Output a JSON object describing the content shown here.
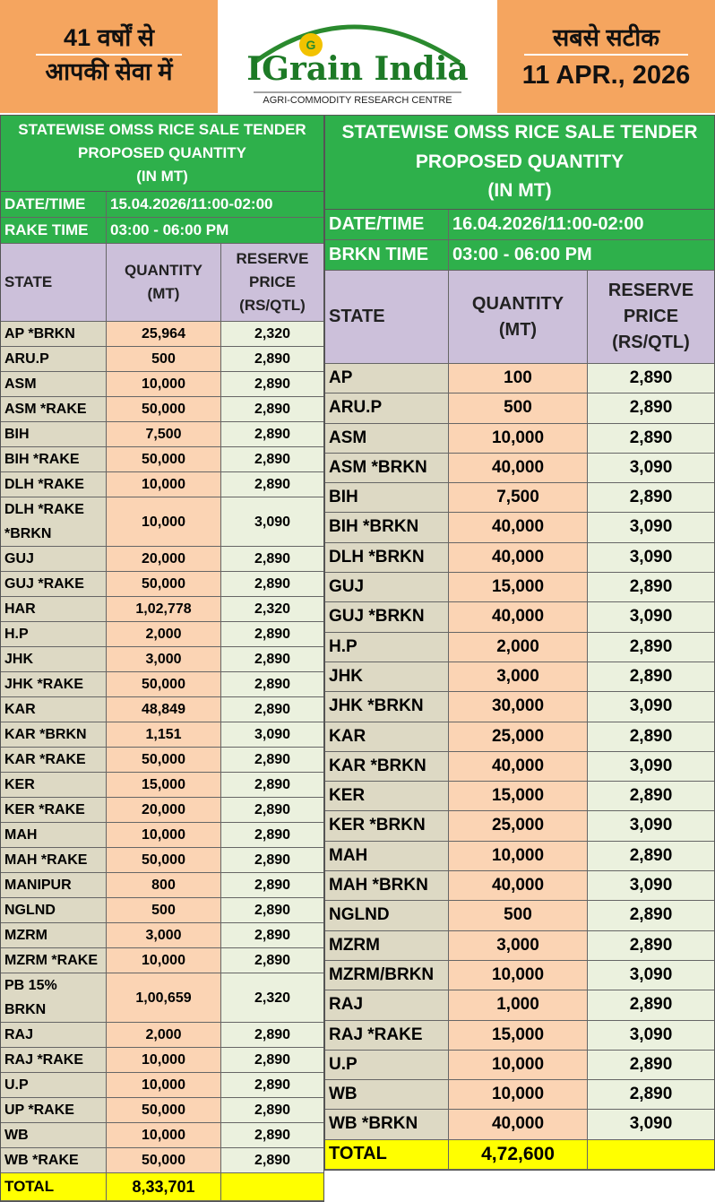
{
  "header": {
    "left": [
      "41 वर्षों से",
      "आपकी सेवा में"
    ],
    "logo": "IGrain India",
    "logo_subtitle": "AGRI-COMMODITY RESEARCH CENTRE",
    "right": [
      "सबसे सटीक",
      "11 APR., 2026"
    ]
  },
  "tables": [
    {
      "title": [
        "STATEWISE OMSS RICE SALE TENDER",
        "PROPOSED QUANTITY",
        "(IN MT)"
      ],
      "info": [
        [
          "DATE/TIME",
          "15.04.2026/11:00-02:00"
        ],
        [
          "RAKE TIME",
          "03:00 - 06:00 PM"
        ]
      ],
      "columns": [
        "STATE",
        "QUANTITY\n(MT)",
        "RESERVE\nPRICE\n(RS/QTL)"
      ],
      "rows": [
        [
          "AP *BRKN",
          "25,964",
          "2,320"
        ],
        [
          "ARU.P",
          "500",
          "2,890"
        ],
        [
          "ASM",
          "10,000",
          "2,890"
        ],
        [
          "ASM *RAKE",
          "50,000",
          "2,890"
        ],
        [
          "BIH",
          "7,500",
          "2,890"
        ],
        [
          "BIH *RAKE",
          "50,000",
          "2,890"
        ],
        [
          "DLH *RAKE",
          "10,000",
          "2,890"
        ],
        [
          "DLH *RAKE *BRKN",
          "10,000",
          "3,090"
        ],
        [
          "GUJ",
          "20,000",
          "2,890"
        ],
        [
          "GUJ *RAKE",
          "50,000",
          "2,890"
        ],
        [
          "HAR",
          "1,02,778",
          "2,320"
        ],
        [
          "H.P",
          "2,000",
          "2,890"
        ],
        [
          "JHK",
          "3,000",
          "2,890"
        ],
        [
          "JHK *RAKE",
          "50,000",
          "2,890"
        ],
        [
          "KAR",
          "48,849",
          "2,890"
        ],
        [
          "KAR *BRKN",
          "1,151",
          "3,090"
        ],
        [
          "KAR *RAKE",
          "50,000",
          "2,890"
        ],
        [
          "KER",
          "15,000",
          "2,890"
        ],
        [
          "KER *RAKE",
          "20,000",
          "2,890"
        ],
        [
          "MAH",
          "10,000",
          "2,890"
        ],
        [
          "MAH *RAKE",
          "50,000",
          "2,890"
        ],
        [
          "MANIPUR",
          "800",
          "2,890"
        ],
        [
          "NGLND",
          "500",
          "2,890"
        ],
        [
          "MZRM",
          "3,000",
          "2,890"
        ],
        [
          "MZRM *RAKE",
          "10,000",
          "2,890"
        ],
        [
          "PB 15% BRKN",
          "1,00,659",
          "2,320"
        ],
        [
          "RAJ",
          "2,000",
          "2,890"
        ],
        [
          "RAJ *RAKE",
          "10,000",
          "2,890"
        ],
        [
          "U.P",
          "10,000",
          "2,890"
        ],
        [
          "UP *RAKE",
          "50,000",
          "2,890"
        ],
        [
          "WB",
          "10,000",
          "2,890"
        ],
        [
          "WB *RAKE",
          "50,000",
          "2,890"
        ]
      ],
      "total": {
        "label": "TOTAL",
        "quantity": "8,33,701"
      }
    },
    {
      "title": [
        "STATEWISE OMSS RICE SALE TENDER",
        "PROPOSED QUANTITY",
        "(IN MT)"
      ],
      "info": [
        [
          "DATE/TIME",
          "16.04.2026/11:00-02:00"
        ],
        [
          "BRKN TIME",
          "03:00 - 06:00 PM"
        ]
      ],
      "columns": [
        "STATE",
        "QUANTITY\n(MT)",
        "RESERVE\nPRICE\n(RS/QTL)"
      ],
      "rows": [
        [
          "AP",
          "100",
          "2,890"
        ],
        [
          "ARU.P",
          "500",
          "2,890"
        ],
        [
          "ASM",
          "10,000",
          "2,890"
        ],
        [
          "ASM *BRKN",
          "40,000",
          "3,090"
        ],
        [
          "BIH",
          "7,500",
          "2,890"
        ],
        [
          "BIH *BRKN",
          "40,000",
          "3,090"
        ],
        [
          "DLH *BRKN",
          "40,000",
          "3,090"
        ],
        [
          "GUJ",
          "15,000",
          "2,890"
        ],
        [
          "GUJ *BRKN",
          "40,000",
          "3,090"
        ],
        [
          "H.P",
          "2,000",
          "2,890"
        ],
        [
          "JHK",
          "3,000",
          "2,890"
        ],
        [
          "JHK *BRKN",
          "30,000",
          "3,090"
        ],
        [
          "KAR",
          "25,000",
          "2,890"
        ],
        [
          "KAR *BRKN",
          "40,000",
          "3,090"
        ],
        [
          "KER",
          "15,000",
          "2,890"
        ],
        [
          "KER *BRKN",
          "25,000",
          "3,090"
        ],
        [
          "MAH",
          "10,000",
          "2,890"
        ],
        [
          "MAH *BRKN",
          "40,000",
          "3,090"
        ],
        [
          "NGLND",
          "500",
          "2,890"
        ],
        [
          "MZRM",
          "3,000",
          "2,890"
        ],
        [
          "MZRM/BRKN",
          "10,000",
          "3,090"
        ],
        [
          "RAJ",
          "1,000",
          "2,890"
        ],
        [
          "RAJ *RAKE",
          "15,000",
          "3,090"
        ],
        [
          "U.P",
          "10,000",
          "2,890"
        ],
        [
          "WB",
          "10,000",
          "2,890"
        ],
        [
          "WB *BRKN",
          "40,000",
          "3,090"
        ]
      ],
      "total": {
        "label": "TOTAL",
        "quantity": "4,72,600"
      }
    }
  ]
}
